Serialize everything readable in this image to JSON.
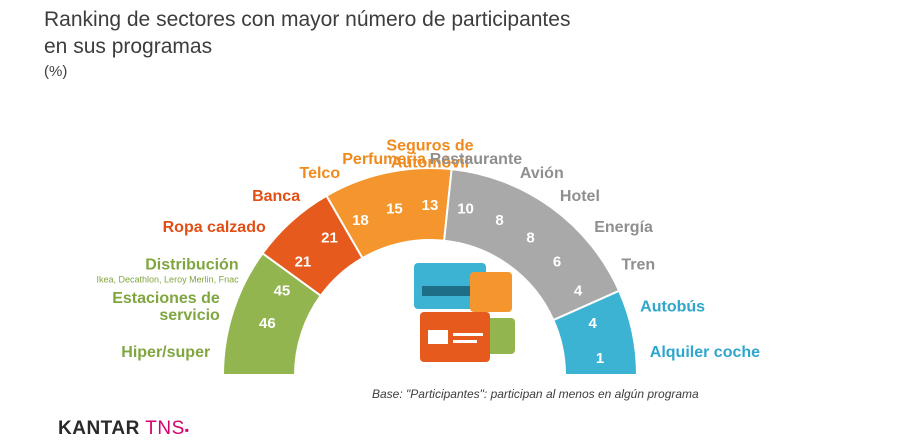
{
  "title_line1": "Ranking de sectores con mayor número de participantes",
  "title_line2": "en sus programas",
  "unit": "(%)",
  "footnote": "Base: \"Participantes\": participan al menos en algún programa",
  "logo": {
    "brand": "KANTAR",
    "sub": "TNS",
    "mark": "▪"
  },
  "colors": {
    "green": "#92b54f",
    "red": "#e65a1e",
    "orange": "#f4962d",
    "gray": "#a9a9a9",
    "blue": "#3db3d3",
    "logo": "#d6006d"
  },
  "chart_data": {
    "type": "semicircle-bar",
    "title": "Ranking de sectores con mayor número de participantes en sus programas",
    "unit": "(%)",
    "groups": [
      {
        "color": "green",
        "label_color": "#7fa63f",
        "items": [
          {
            "label": "Hiper/super",
            "value": null
          },
          {
            "label": "Estaciones de servicio",
            "value": 46
          },
          {
            "label": "Distribución",
            "sublabel": "Ikea, Decathlon, Leroy Merlin, Fnac",
            "value": 45
          }
        ]
      },
      {
        "color": "red",
        "label_color": "#e24e14",
        "items": [
          {
            "label": "Ropa calzado",
            "value": 21
          },
          {
            "label": "Banca",
            "value": 21
          }
        ]
      },
      {
        "color": "orange",
        "label_color": "#f08a1c",
        "items": [
          {
            "label": "Telco",
            "value": 18
          },
          {
            "label": "Perfumeria",
            "value": 15
          },
          {
            "label": "Seguros de Automóvil",
            "value": 13
          }
        ]
      },
      {
        "color": "gray",
        "label_color": "#8f8f8f",
        "items": [
          {
            "label": "Restaurante",
            "value": 10
          },
          {
            "label": "Avión",
            "value": 8
          },
          {
            "label": "Hotel",
            "value": 8
          },
          {
            "label": "Energía",
            "value": 6
          },
          {
            "label": "Tren",
            "value": 4
          }
        ]
      },
      {
        "color": "blue",
        "label_color": "#2fa6cc",
        "items": [
          {
            "label": "Autobús",
            "value": 4
          },
          {
            "label": "Alquiler coche",
            "value": 1
          }
        ]
      }
    ]
  }
}
